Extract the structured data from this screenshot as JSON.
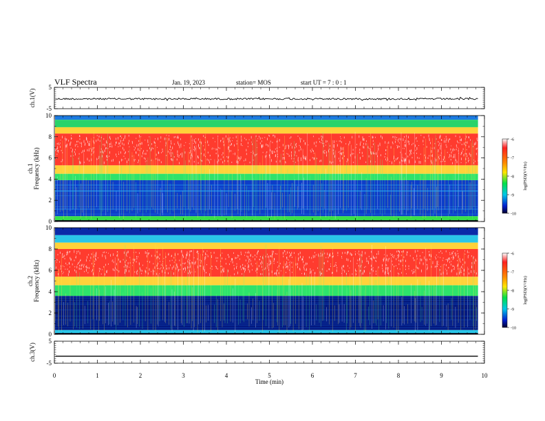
{
  "header": {
    "title": "VLF Spectra",
    "date": "Jan. 19, 2023",
    "station": "station= MOS",
    "start": "start UT =  7 : 0  : 1"
  },
  "chart_data": [
    {
      "type": "line",
      "panel": "ch1-waveform",
      "ylabel": "ch.1(V)",
      "ylim": [
        -5,
        5
      ],
      "yticks": [
        "5",
        "-5"
      ],
      "xlim": [
        0,
        10
      ],
      "level": -0.4
    },
    {
      "type": "heatmap",
      "panel": "ch1-spectrogram",
      "ylabel": "ch.1\nFrequency (kHz)",
      "ylim": [
        0,
        10
      ],
      "yticks": [
        "0",
        "2",
        "4",
        "6",
        "8",
        "10"
      ],
      "xlim": [
        0,
        10
      ],
      "colorbar": {
        "label": "log(PSD)(V²/Hz)",
        "range": [
          -10,
          -6
        ],
        "ticks": [
          "-6",
          "-7",
          "-8",
          "-9",
          "-10"
        ]
      },
      "bands": [
        {
          "from": 9.6,
          "to": 10.0,
          "color": "#1c7ae0"
        },
        {
          "from": 8.9,
          "to": 9.6,
          "color": "#29d36a"
        },
        {
          "from": 8.3,
          "to": 8.9,
          "color": "#ffd23a"
        },
        {
          "from": 5.3,
          "to": 8.3,
          "color": "#ff3b2e"
        },
        {
          "from": 4.5,
          "to": 5.3,
          "color": "#ffd23a"
        },
        {
          "from": 3.9,
          "to": 4.5,
          "color": "#2ee36b"
        },
        {
          "from": 0.5,
          "to": 3.9,
          "color": "#0d3ec9"
        },
        {
          "from": 0.0,
          "to": 0.5,
          "color": "#38e04a"
        }
      ]
    },
    {
      "type": "heatmap",
      "panel": "ch2-spectrogram",
      "ylabel": "ch.2\nFrequency (kHz)",
      "ylim": [
        0,
        10
      ],
      "yticks": [
        "0",
        "2",
        "4",
        "6",
        "8",
        "10"
      ],
      "xlim": [
        0,
        10
      ],
      "colorbar": {
        "label": "log(PSD)(V²/Hz)",
        "range": [
          -10,
          -6
        ],
        "ticks": [
          "-6",
          "-7",
          "-8",
          "-9",
          "-10"
        ]
      },
      "bands": [
        {
          "from": 9.3,
          "to": 10.0,
          "color": "#0a2aa8"
        },
        {
          "from": 8.6,
          "to": 9.3,
          "color": "#2ac6e8"
        },
        {
          "from": 8.0,
          "to": 8.6,
          "color": "#ffd23a"
        },
        {
          "from": 5.4,
          "to": 8.0,
          "color": "#ff3b2e"
        },
        {
          "from": 4.6,
          "to": 5.4,
          "color": "#ffd23a"
        },
        {
          "from": 3.6,
          "to": 4.6,
          "color": "#2ee36b"
        },
        {
          "from": 0.4,
          "to": 3.6,
          "color": "#041a80"
        },
        {
          "from": 0.0,
          "to": 0.4,
          "color": "#2ac6e8"
        }
      ]
    },
    {
      "type": "line",
      "panel": "ch3-waveform",
      "ylabel": "ch.3(V)",
      "ylim": [
        -5,
        5
      ],
      "yticks": [
        "5",
        "-5"
      ],
      "xlim": [
        0,
        10
      ],
      "level": -1.8
    }
  ],
  "xaxis": {
    "label": "Time (min)",
    "ticks": [
      "0",
      "1",
      "2",
      "3",
      "4",
      "5",
      "6",
      "7",
      "8",
      "9",
      "10"
    ],
    "data_end": 9.85
  }
}
